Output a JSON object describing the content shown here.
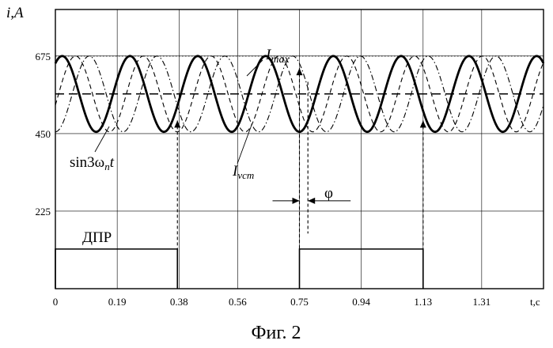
{
  "chart_data": {
    "type": "line",
    "ylabel": "i,A",
    "xlabel": "t,c",
    "caption": "Фиг. 2",
    "ylim": [
      0,
      810
    ],
    "xlim": [
      0,
      1.5
    ],
    "grid": true,
    "x_ticks": [
      {
        "value": 0,
        "label": "0"
      },
      {
        "value": 0.19,
        "label": "0.19"
      },
      {
        "value": 0.38,
        "label": "0.38"
      },
      {
        "value": 0.56,
        "label": "0.56"
      },
      {
        "value": 0.75,
        "label": "0.75"
      },
      {
        "value": 0.94,
        "label": "0.94"
      },
      {
        "value": 1.13,
        "label": "1.13"
      },
      {
        "value": 1.31,
        "label": "1.31"
      }
    ],
    "y_ticks": [
      {
        "value": 225,
        "label": "225"
      },
      {
        "value": 450,
        "label": "450"
      },
      {
        "value": 675,
        "label": "675"
      }
    ],
    "series": [
      {
        "key": "ivcm",
        "style": "solid-thick",
        "mean": 565,
        "amplitude": 110,
        "period": 0.2083,
        "phase_time": 0.021
      },
      {
        "key": "sin3",
        "style": "dashed",
        "mean": 565,
        "amplitude": 110,
        "period": 0.2083,
        "phase_time": 0.062
      },
      {
        "key": "sin3b",
        "style": "dash-dot",
        "mean": 565,
        "amplitude": 110,
        "period": 0.2083,
        "phase_time": 0.104
      }
    ],
    "reference_lines": [
      {
        "key": "imax",
        "value": 675,
        "style": "dotted"
      },
      {
        "key": "mean",
        "value": 565,
        "style": "dashed"
      }
    ],
    "dpr_pulses": [
      {
        "start": 0,
        "end": 0.375,
        "level": 115
      },
      {
        "start": 0.75,
        "end": 1.13,
        "level": 115
      }
    ],
    "markers": [
      {
        "x": 0.375,
        "y_from": 488,
        "y_to": 115,
        "style": "dashed-arrow-up"
      },
      {
        "x": 1.13,
        "y_from": 488,
        "y_to": 115,
        "style": "dashed-arrow-up"
      },
      {
        "x": 0.75,
        "y_from": 640,
        "y_to": 115,
        "style": "dashed-arrow-up"
      },
      {
        "x": 0.776,
        "y_from": 600,
        "y_to": 160,
        "style": "dashed"
      }
    ],
    "phase_marker": {
      "x_from": 0.75,
      "x_to": 0.776,
      "y": 255
    },
    "annotations": {
      "imax_main": "I",
      "imax_sub": "max",
      "ivcm_main": "I",
      "ivcm_sub": "vcm",
      "sin_main": "sin3ω",
      "sin_sub": "n",
      "sin_tail": "t",
      "phi": "φ",
      "dpr": "ДПР"
    }
  }
}
